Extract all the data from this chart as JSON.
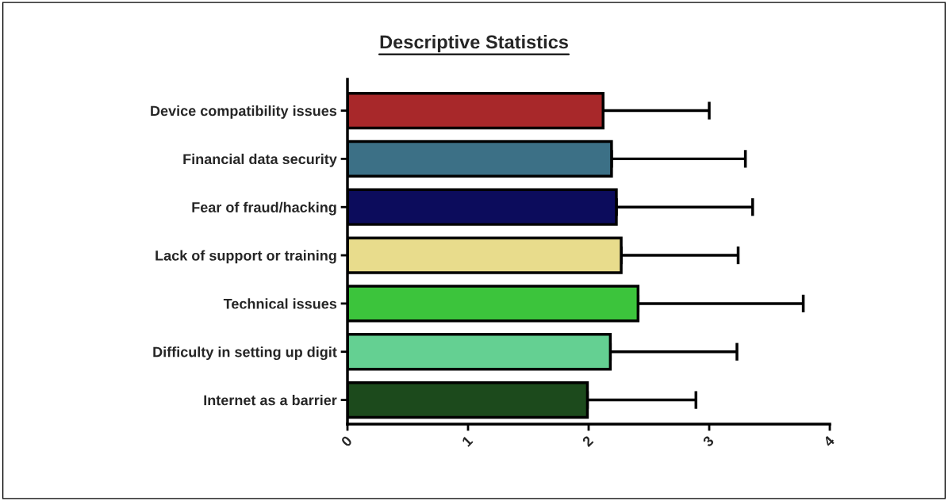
{
  "chart_data": {
    "type": "bar",
    "orientation": "horizontal",
    "title": "Descriptive Statistics",
    "categories": [
      "Device compatibility issues",
      "Financial data security",
      "Fear of fraud/hacking",
      "Lack of support or training",
      "Technical issues",
      "Difficulty in setting up digit",
      "Internet as a barrier"
    ],
    "values": [
      2.12,
      2.19,
      2.23,
      2.27,
      2.41,
      2.18,
      1.99
    ],
    "errors": [
      [
        2.12,
        3.0
      ],
      [
        2.19,
        3.3
      ],
      [
        2.23,
        3.36
      ],
      [
        2.27,
        3.24
      ],
      [
        2.41,
        3.78
      ],
      [
        2.18,
        3.23
      ],
      [
        1.99,
        2.89
      ]
    ],
    "colors": [
      "#a8282a",
      "#3c7086",
      "#0c0c5c",
      "#e8dc8c",
      "#3cc43c",
      "#64d092",
      "#1c4a1c"
    ],
    "xlim": [
      0,
      4
    ],
    "xticks": [
      0,
      1,
      2,
      3,
      4
    ],
    "grid": false,
    "legend": false
  }
}
